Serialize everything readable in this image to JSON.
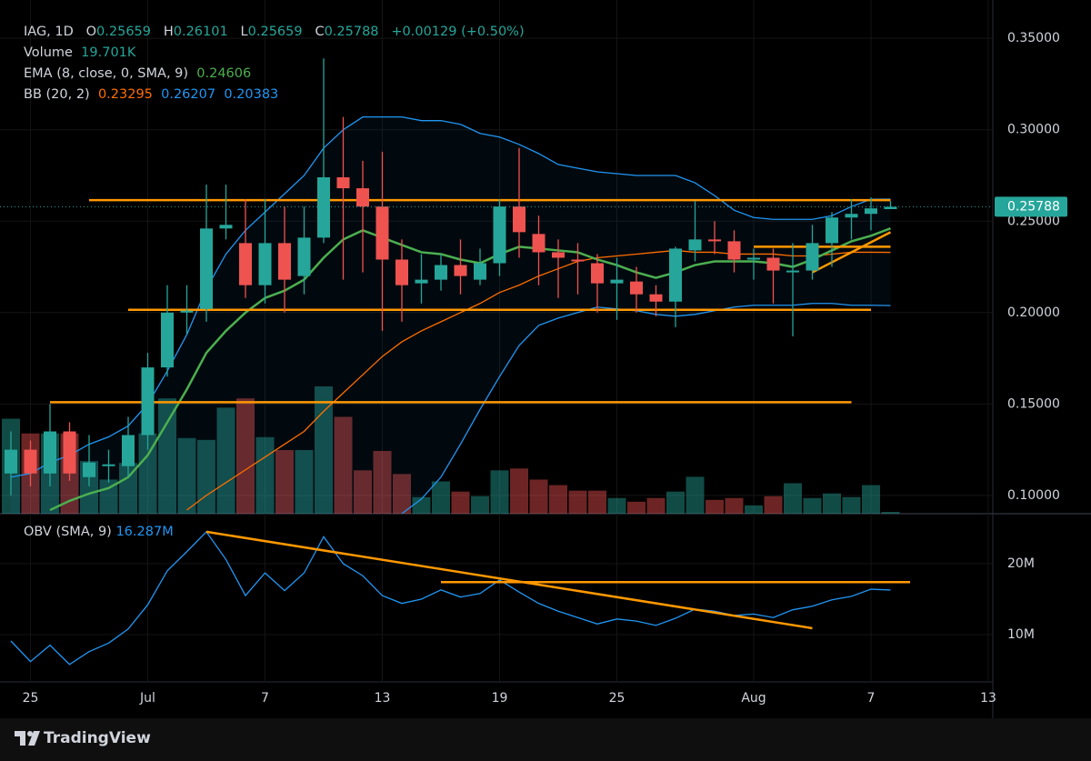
{
  "chart_data": {
    "type": "candlestick",
    "symbol": "IAG, 1D",
    "header": {
      "o_label": "O",
      "h_label": "H",
      "l_label": "L",
      "c_label": "C",
      "change": "+0.00129 (+0.50%)"
    },
    "categories": [
      null,
      "25",
      null,
      null,
      null,
      null,
      null,
      "Jul",
      null,
      null,
      null,
      null,
      null,
      "7",
      null,
      null,
      null,
      null,
      null,
      "13",
      null,
      null,
      null,
      null,
      null,
      "19",
      null,
      null,
      null,
      null,
      null,
      "25",
      null,
      null,
      null,
      null,
      null,
      null,
      "Aug",
      null,
      null,
      null,
      null,
      null,
      "7",
      null,
      null,
      null,
      null,
      null,
      "13"
    ],
    "open": [
      0.112,
      0.125,
      0.112,
      0.135,
      0.11,
      0.116,
      0.116,
      0.133,
      0.17,
      0.2,
      0.202,
      0.246,
      0.238,
      0.215,
      0.238,
      0.22,
      0.241,
      0.274,
      0.268,
      0.258,
      0.229,
      0.216,
      0.218,
      0.226,
      0.218,
      0.227,
      0.258,
      0.243,
      0.233,
      0.229,
      0.227,
      0.216,
      0.217,
      0.21,
      0.206,
      0.234,
      0.24,
      0.239,
      0.229,
      0.23,
      0.222,
      0.223,
      0.238,
      0.252,
      0.254,
      0.25659,
      null,
      null,
      null,
      null,
      null
    ],
    "high": [
      0.135,
      0.13,
      0.15,
      0.14,
      0.133,
      0.125,
      0.143,
      0.178,
      0.215,
      0.215,
      0.27,
      0.27,
      0.262,
      0.262,
      0.258,
      0.258,
      0.339,
      0.307,
      0.283,
      0.288,
      0.24,
      0.232,
      0.232,
      0.24,
      0.235,
      0.262,
      0.29,
      0.253,
      0.24,
      0.238,
      0.232,
      0.23,
      0.225,
      0.215,
      0.236,
      0.261,
      0.25,
      0.245,
      0.235,
      0.235,
      0.238,
      0.248,
      0.255,
      0.262,
      0.263,
      0.26101,
      null,
      null,
      null,
      null,
      null
    ],
    "low": [
      0.1,
      0.105,
      0.105,
      0.108,
      0.105,
      0.107,
      0.11,
      0.125,
      0.165,
      0.188,
      0.195,
      0.24,
      0.208,
      0.205,
      0.2,
      0.21,
      0.238,
      0.218,
      0.222,
      0.19,
      0.195,
      0.205,
      0.212,
      0.21,
      0.215,
      0.22,
      0.23,
      0.215,
      0.208,
      0.21,
      0.2,
      0.196,
      0.2,
      0.198,
      0.192,
      0.228,
      0.232,
      0.222,
      0.218,
      0.205,
      0.187,
      0.218,
      0.225,
      0.24,
      0.245,
      0.25659,
      null,
      null,
      null,
      null,
      null
    ],
    "close": [
      0.125,
      0.112,
      0.135,
      0.112,
      0.118,
      0.117,
      0.133,
      0.17,
      0.2,
      0.201,
      0.246,
      0.248,
      0.215,
      0.238,
      0.218,
      0.241,
      0.274,
      0.268,
      0.258,
      0.229,
      0.215,
      0.218,
      0.226,
      0.22,
      0.227,
      0.258,
      0.244,
      0.233,
      0.23,
      0.228,
      0.216,
      0.218,
      0.21,
      0.206,
      0.235,
      0.24,
      0.239,
      0.229,
      0.23,
      0.223,
      0.223,
      0.238,
      0.252,
      0.254,
      0.257,
      0.25788,
      null,
      null,
      null,
      null,
      null
    ],
    "colors": {
      "up": "#26a69a",
      "down": "#ef5350"
    },
    "ylim": [
      0.09,
      0.367
    ],
    "yticks": [
      {
        "value": 0.35,
        "label": "0.35000"
      },
      {
        "value": 0.3,
        "label": "0.30000"
      },
      {
        "value": 0.25,
        "label": "0.25000"
      },
      {
        "value": 0.2,
        "label": "0.20000"
      },
      {
        "value": 0.15,
        "label": "0.15000"
      },
      {
        "value": 0.1,
        "label": "0.10000"
      }
    ],
    "grid": true,
    "volume": {
      "name": "Volume",
      "value_label": "19.701K",
      "values": [
        1030,
        870,
        870,
        870,
        570,
        370,
        550,
        870,
        1250,
        820,
        800,
        1150,
        1250,
        830,
        690,
        690,
        1380,
        1050,
        470,
        680,
        430,
        180,
        350,
        240,
        190,
        470,
        490,
        370,
        310,
        250,
        250,
        170,
        130,
        170,
        240,
        400,
        150,
        170,
        90,
        190,
        330,
        170,
        220,
        180,
        310,
        19.701,
        null,
        null,
        null,
        null,
        null
      ]
    },
    "ema": {
      "name": "EMA (8, close, 0, SMA, 9)",
      "color": "#4caf50",
      "values": [
        null,
        null,
        0.092,
        0.097,
        0.101,
        0.104,
        0.11,
        0.122,
        0.14,
        0.158,
        0.178,
        0.19,
        0.2,
        0.208,
        0.212,
        0.218,
        0.23,
        0.24,
        0.245,
        0.241,
        0.237,
        0.233,
        0.232,
        0.229,
        0.227,
        0.232,
        0.236,
        0.235,
        0.234,
        0.233,
        0.229,
        0.226,
        0.222,
        0.219,
        0.222,
        0.226,
        0.228,
        0.228,
        0.228,
        0.227,
        0.225,
        0.229,
        0.234,
        0.239,
        0.242,
        0.24606,
        null,
        null,
        null,
        null,
        null
      ]
    },
    "bb": {
      "name": "BB (20, 2)",
      "basis": {
        "color": "#ff6d00",
        "values": [
          null,
          null,
          null,
          null,
          null,
          null,
          null,
          null,
          null,
          0.092,
          0.1,
          0.107,
          0.114,
          0.121,
          0.128,
          0.135,
          0.146,
          0.156,
          0.166,
          0.176,
          0.184,
          0.19,
          0.195,
          0.2,
          0.205,
          0.211,
          0.215,
          0.22,
          0.224,
          0.228,
          0.23,
          0.231,
          0.232,
          0.233,
          0.234,
          0.233,
          0.233,
          0.232,
          0.232,
          0.232,
          0.231,
          0.231,
          0.232,
          0.233,
          0.233,
          0.23295,
          null,
          null,
          null,
          null,
          null
        ]
      },
      "upper": {
        "color": "#2196f3",
        "values": [
          0.11,
          0.112,
          0.118,
          0.122,
          0.128,
          0.132,
          0.138,
          0.15,
          0.168,
          0.188,
          0.213,
          0.232,
          0.245,
          0.255,
          0.265,
          0.275,
          0.29,
          0.3,
          0.307,
          0.307,
          0.307,
          0.305,
          0.305,
          0.303,
          0.298,
          0.296,
          0.292,
          0.287,
          0.281,
          0.279,
          0.277,
          0.276,
          0.275,
          0.275,
          0.275,
          0.271,
          0.264,
          0.256,
          0.252,
          0.251,
          0.251,
          0.251,
          0.253,
          0.258,
          0.262,
          0.26207,
          null,
          null,
          null,
          null,
          null
        ]
      },
      "lower": {
        "color": "#2196f3",
        "values": [
          null,
          null,
          null,
          null,
          null,
          null,
          null,
          null,
          null,
          null,
          null,
          null,
          null,
          null,
          null,
          null,
          null,
          null,
          null,
          null,
          0.09,
          0.098,
          0.11,
          0.128,
          0.147,
          0.165,
          0.182,
          0.193,
          0.197,
          0.2,
          0.203,
          0.202,
          0.201,
          0.199,
          0.198,
          0.199,
          0.201,
          0.203,
          0.204,
          0.204,
          0.204,
          0.205,
          0.205,
          0.204,
          0.204,
          0.20383,
          null,
          null,
          null,
          null,
          null
        ]
      }
    },
    "trend_color": "#ff9800",
    "trend_lines": [
      {
        "x": [
          4,
          45
        ],
        "y": [
          0.2615,
          0.2615
        ]
      },
      {
        "x": [
          6,
          44
        ],
        "y": [
          0.2015,
          0.2015
        ]
      },
      {
        "x": [
          2,
          43
        ],
        "y": [
          0.151,
          0.151
        ]
      },
      {
        "x": [
          38,
          45
        ],
        "y": [
          0.236,
          0.236
        ]
      },
      {
        "x": [
          41,
          45
        ],
        "y": [
          0.222,
          0.244
        ]
      }
    ],
    "obv": {
      "name": "OBV (SMA, 9)",
      "value_label": "16.287M",
      "color": "#2196f3",
      "values": [
        9.1,
        6.2,
        8.5,
        5.8,
        7.6,
        8.8,
        10.8,
        14.2,
        19.0,
        21.7,
        24.5,
        20.6,
        15.5,
        18.7,
        16.2,
        18.7,
        23.8,
        20.0,
        18.3,
        15.5,
        14.4,
        15.0,
        16.3,
        15.3,
        15.8,
        17.7,
        16.0,
        14.4,
        13.3,
        12.4,
        11.5,
        12.2,
        11.9,
        11.3,
        12.3,
        13.6,
        13.3,
        12.7,
        12.9,
        12.4,
        13.5,
        14.0,
        14.9,
        15.4,
        16.4,
        16.287,
        null,
        null,
        null,
        null,
        null
      ],
      "ylim": [
        3.33,
        27.05
      ],
      "yticks": [
        {
          "value": 20,
          "label": "20M"
        },
        {
          "value": 10,
          "label": "10M"
        }
      ],
      "trend_lines": [
        {
          "x": [
            10,
            41
          ],
          "y": [
            24.5,
            10.9
          ]
        },
        {
          "x": [
            22,
            46
          ],
          "y": [
            17.4,
            17.4
          ]
        }
      ]
    },
    "brand": "TradingView"
  }
}
